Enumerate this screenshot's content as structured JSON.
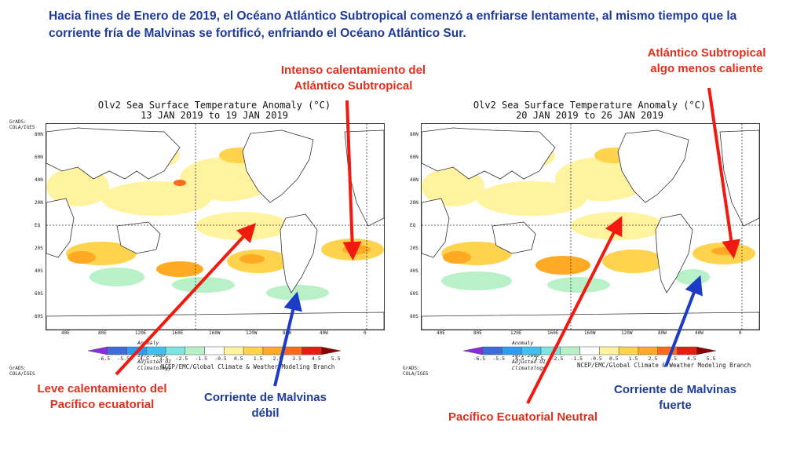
{
  "header": "Hacia fines de Enero de 2019, el Océano Atlántico Subtropical comenzó a enfriarse lentamente, al mismo tiempo que la corriente fría de Malvinas se fortificó, enfriando el Océano Atlántico Sur.",
  "colors": {
    "header_text": "#1f3b9a",
    "red_annotation": "#e0301e",
    "blue_annotation": "#1f3b9a"
  },
  "left_panel": {
    "title_line1": "Olv2 Sea Surface Temperature Anomaly (°C)",
    "title_line2": "13 JAN 2019 to 19 JAN 2019",
    "lat_labels": [
      "80N",
      "60N",
      "40N",
      "20N",
      "EQ",
      "20S",
      "40S",
      "60S",
      "80S"
    ],
    "lon_labels": [
      "40E",
      "80E",
      "120E",
      "160E",
      "160W",
      "120W",
      "80W",
      "40W",
      "0"
    ],
    "colorbar_note": "Anomaly relative to 1971-2000 Adjusted OI Climatology",
    "colorbar_ticks": [
      "-6.5",
      "-5.5",
      "-4.5",
      "-3.5",
      "-2.5",
      "-1.5",
      "-0.5",
      "0.5",
      "1.5",
      "2.5",
      "3.5",
      "4.5",
      "5.5"
    ],
    "credit": "NCEP/EMC/Global Climate & Weather Modeling Branch",
    "grads": "GrADS: COLA/IGES"
  },
  "right_panel": {
    "title_line1": "Olv2 Sea Surface Temperature Anomaly (°C)",
    "title_line2": "20 JAN 2019 to 26 JAN 2019",
    "lat_labels": [
      "80N",
      "60N",
      "40N",
      "20N",
      "EQ",
      "20S",
      "40S",
      "60S",
      "80S"
    ],
    "lon_labels": [
      "40E",
      "80E",
      "120E",
      "160E",
      "160W",
      "120W",
      "80W",
      "40W",
      "0"
    ],
    "colorbar_note": "Anomaly relative to 1971-2000 Adjusted OI Climatology",
    "colorbar_ticks": [
      "-6.5",
      "-5.5",
      "-4.5",
      "-3.5",
      "-2.5",
      "-1.5",
      "-0.5",
      "0.5",
      "1.5",
      "2.5",
      "3.5",
      "4.5",
      "5.5"
    ],
    "credit": "NCEP/EMC/Global Climate & Weather Modeling Branch",
    "grads": "GrADS: COLA/IGES"
  },
  "annotations": {
    "intenso_line1": "Intenso calentamiento del",
    "intenso_line2": "Atlántico Subtropical",
    "algo_line1": "Atlántico Subtropical",
    "algo_line2": "algo menos caliente",
    "leve_line1": "Leve calentamiento del",
    "leve_line2": "Pacífico ecuatorial",
    "malvinas_debil_line1": "Corriente de Malvinas",
    "malvinas_debil_line2": "débil",
    "pacifico_neutral": "Pacífico Ecuatorial Neutral",
    "malvinas_fuerte_line1": "Corriente de Malvinas",
    "malvinas_fuerte_line2": "fuerte"
  },
  "colorbar_colors": [
    "#8a2be2",
    "#3d6bd9",
    "#2e9cf0",
    "#40c0f0",
    "#7fe3e0",
    "#b8f0c8",
    "#ffffff",
    "#fff3a0",
    "#ffd34d",
    "#ffaa22",
    "#ff6a1a",
    "#e81c10",
    "#8b0000"
  ]
}
